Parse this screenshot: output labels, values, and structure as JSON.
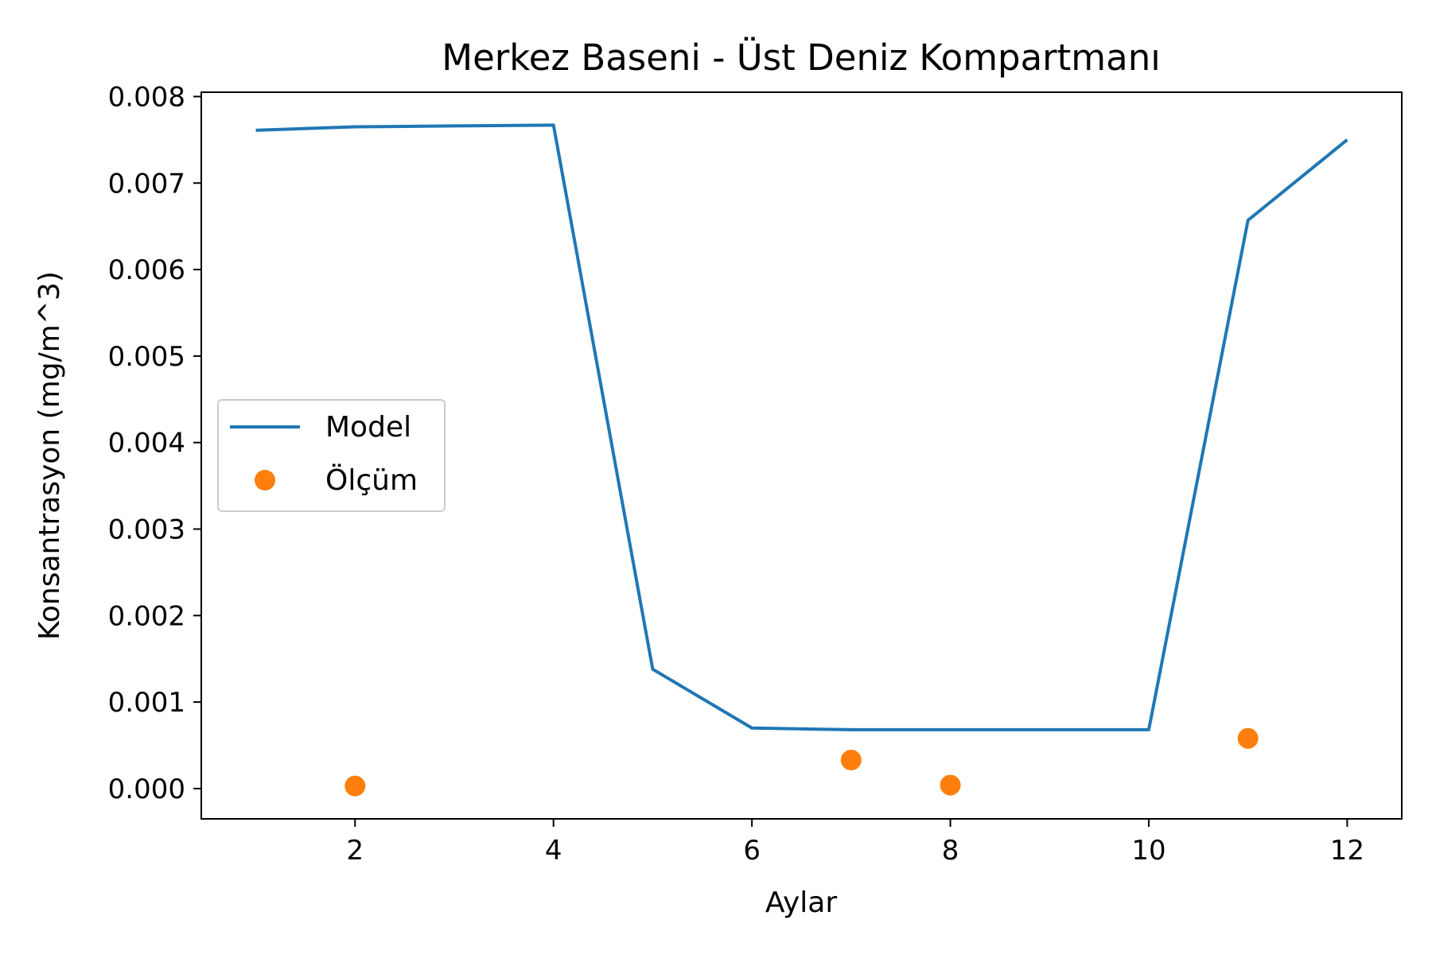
{
  "chart_data": {
    "type": "line",
    "title": "Merkez Baseni - Üst Deniz Kompartmanı",
    "xlabel": "Aylar",
    "ylabel": "Konsantrasyon (mg/m^3)",
    "xlim": [
      0.45,
      12.55
    ],
    "ylim": [
      -0.00035,
      0.00805
    ],
    "xticks": [
      2,
      4,
      6,
      8,
      10,
      12
    ],
    "xtick_labels": [
      "2",
      "4",
      "6",
      "8",
      "10",
      "12"
    ],
    "yticks": [
      0,
      0.001,
      0.002,
      0.003,
      0.004,
      0.005,
      0.006,
      0.007,
      0.008
    ],
    "ytick_labels": [
      "0.000",
      "0.001",
      "0.002",
      "0.003",
      "0.004",
      "0.005",
      "0.006",
      "0.007",
      "0.008"
    ],
    "grid": false,
    "legend_position": "center-left",
    "series": [
      {
        "name": "Model",
        "kind": "line",
        "color": "#1f77b4",
        "x": [
          1,
          2,
          3,
          4,
          5,
          6,
          7,
          8,
          9,
          10,
          11,
          12
        ],
        "y": [
          0.00761,
          0.00765,
          0.00766,
          0.00767,
          0.00138,
          0.0007,
          0.00068,
          0.00068,
          0.00068,
          0.00068,
          0.00657,
          0.0075
        ]
      },
      {
        "name": "Ölçüm",
        "kind": "scatter",
        "color": "#ff7f0e",
        "x": [
          2,
          7,
          8,
          11
        ],
        "y": [
          3e-05,
          0.00033,
          4e-05,
          0.00058
        ]
      }
    ]
  }
}
